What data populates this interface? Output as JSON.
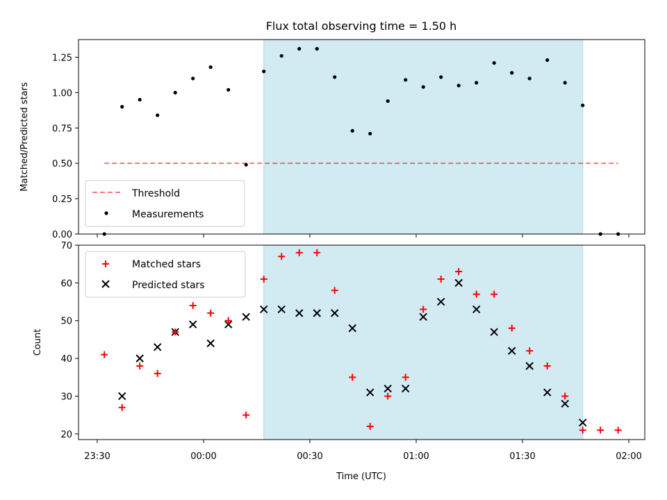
{
  "figure_title": "Flux total observing time = 1.50 h",
  "colors": {
    "shade": "#add8e6",
    "threshold": "#ff0000",
    "measurements": "#000000",
    "matched": "#ff0000",
    "predicted": "#000000"
  },
  "chart_data": [
    {
      "type": "scatter",
      "title": "Flux total observing time = 1.50 h",
      "xlabel": "",
      "ylabel": "Matched/Predicted stars",
      "ylim": [
        0,
        1.375
      ],
      "yticks": [
        "0.00",
        "0.25",
        "0.50",
        "0.75",
        "1.00",
        "1.25"
      ],
      "shaded_span": {
        "start": "00:17",
        "end": "01:47"
      },
      "threshold": {
        "name": "Threshold",
        "value": 0.5,
        "x_start": "23:32",
        "x_end": "01:57",
        "style": "dashed"
      },
      "series": [
        {
          "name": "Measurements",
          "marker": "dot",
          "x": [
            "23:32",
            "23:37",
            "23:42",
            "23:47",
            "23:52",
            "23:57",
            "00:02",
            "00:07",
            "00:12",
            "00:17",
            "00:22",
            "00:27",
            "00:32",
            "00:37",
            "00:42",
            "00:47",
            "00:52",
            "00:57",
            "01:02",
            "01:07",
            "01:12",
            "01:17",
            "01:22",
            "01:27",
            "01:32",
            "01:37",
            "01:42",
            "01:47",
            "01:52",
            "01:57"
          ],
          "values": [
            0.0,
            0.9,
            0.95,
            0.84,
            1.0,
            1.1,
            1.18,
            1.02,
            0.49,
            1.15,
            1.26,
            1.31,
            1.31,
            1.11,
            0.73,
            0.71,
            0.94,
            1.09,
            1.04,
            1.11,
            1.05,
            1.07,
            1.21,
            1.14,
            1.1,
            1.23,
            1.07,
            0.91,
            0.0,
            0.0
          ]
        }
      ],
      "legend": {
        "position": "lower-left"
      }
    },
    {
      "type": "scatter",
      "xlabel": "Time (UTC)",
      "ylabel": "Count",
      "ylim": [
        18.5,
        70
      ],
      "yticks": [
        "20",
        "30",
        "40",
        "50",
        "60",
        "70"
      ],
      "xticks": [
        "23:30",
        "00:00",
        "00:30",
        "01:00",
        "01:30",
        "02:00"
      ],
      "shaded_span": {
        "start": "00:17",
        "end": "01:47"
      },
      "series": [
        {
          "name": "Matched stars",
          "marker": "plus",
          "x": [
            "23:32",
            "23:37",
            "23:42",
            "23:47",
            "23:52",
            "23:57",
            "00:02",
            "00:07",
            "00:12",
            "00:17",
            "00:22",
            "00:27",
            "00:32",
            "00:37",
            "00:42",
            "00:47",
            "00:52",
            "00:57",
            "01:02",
            "01:07",
            "01:12",
            "01:17",
            "01:22",
            "01:27",
            "01:32",
            "01:37",
            "01:42",
            "01:47",
            "01:52",
            "01:57"
          ],
          "values": [
            41,
            27,
            38,
            36,
            47,
            54,
            52,
            50,
            25,
            61,
            67,
            68,
            68,
            58,
            35,
            22,
            30,
            35,
            53,
            61,
            63,
            57,
            57,
            48,
            42,
            38,
            30,
            21,
            21,
            21
          ]
        },
        {
          "name": "Predicted stars",
          "marker": "x",
          "x": [
            "23:37",
            "23:42",
            "23:47",
            "23:52",
            "23:57",
            "00:02",
            "00:07",
            "00:12",
            "00:17",
            "00:22",
            "00:27",
            "00:32",
            "00:37",
            "00:42",
            "00:47",
            "00:52",
            "00:57",
            "01:02",
            "01:07",
            "01:12",
            "01:17",
            "01:22",
            "01:27",
            "01:32",
            "01:37",
            "01:42",
            "01:47"
          ],
          "values": [
            30,
            40,
            43,
            47,
            49,
            44,
            49,
            51,
            53,
            53,
            52,
            52,
            52,
            48,
            31,
            32,
            32,
            51,
            55,
            60,
            53,
            47,
            42,
            38,
            31,
            28,
            23
          ]
        }
      ],
      "legend": {
        "position": "upper-left"
      }
    }
  ]
}
